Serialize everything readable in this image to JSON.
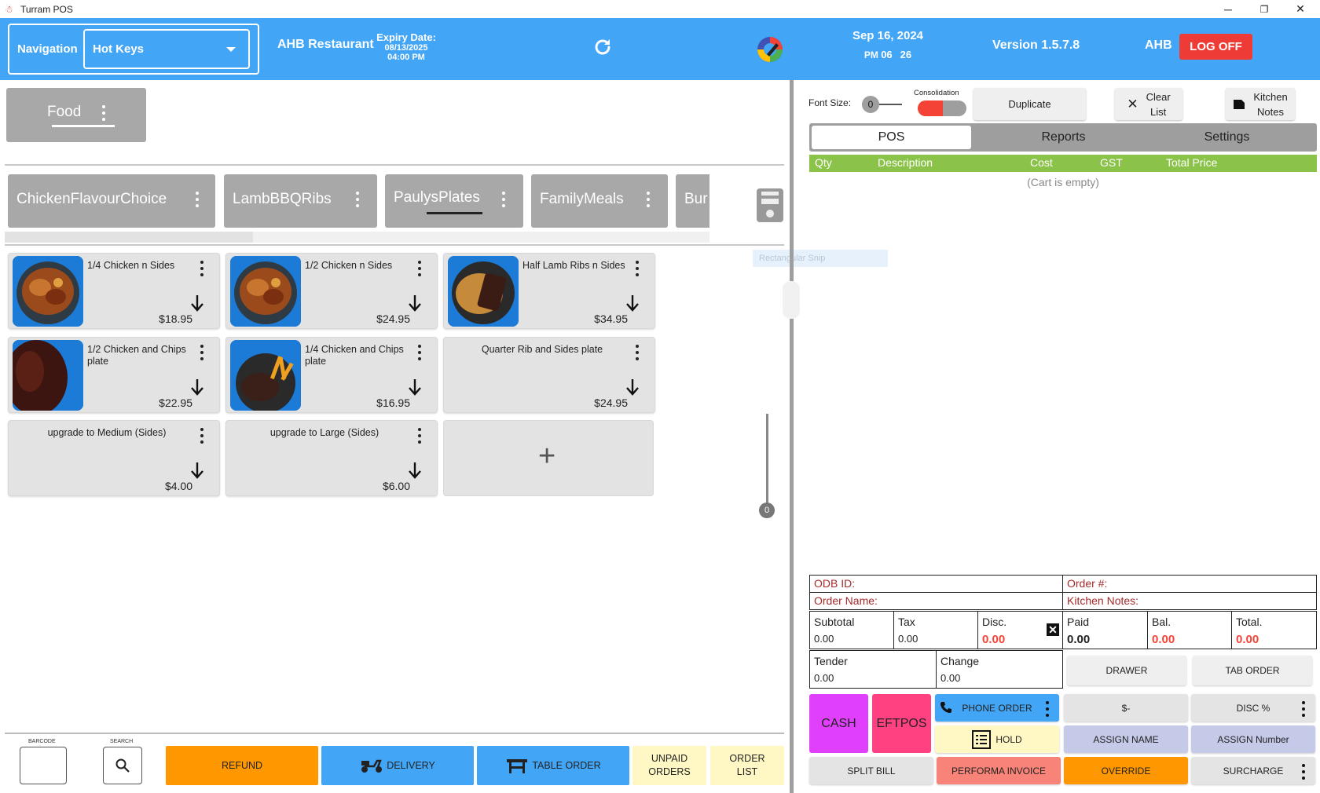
{
  "window": {
    "title": "Turram POS",
    "controls": {
      "minimize": "─",
      "restore": "❐",
      "close": "✕"
    }
  },
  "header": {
    "nav_label": "Navigation",
    "nav_selected": "Hot Keys",
    "restaurant": "AHB Restaurant",
    "expiry_label": "Expiry Date:",
    "expiry_date": "08/13/2025",
    "expiry_time": "04:00 PM",
    "date": "Sep 16, 2024",
    "time_ampm": "PM",
    "time_hour": "06",
    "time_min": "26",
    "version": "Version 1.5.7.8",
    "user": "AHB",
    "logoff": "LOG OFF",
    "colors": {
      "bar": "#42a5f5",
      "logoff": "#ef3b36"
    }
  },
  "groups": [
    {
      "label": "Food"
    }
  ],
  "categories": [
    {
      "label": "ChickenFlavourChoice"
    },
    {
      "label": "LambBBQRibs"
    },
    {
      "label": "PaulysPlates",
      "selected": true
    },
    {
      "label": "FamilyMeals"
    },
    {
      "label": "Bur"
    }
  ],
  "items": [
    {
      "name": "1/4 Chicken n Sides",
      "price": "$18.95",
      "image": "roast-chicken"
    },
    {
      "name": "1/2 Chicken n Sides",
      "price": "$24.95",
      "image": "roast-chicken"
    },
    {
      "name": "Half Lamb Ribs n Sides",
      "price": "$34.95",
      "image": "lamb-ribs"
    },
    {
      "name": "1/2 Chicken and Chips plate",
      "price": "$22.95",
      "image": "glazed-meat"
    },
    {
      "name": "1/4 Chicken and Chips plate",
      "price": "$16.95",
      "image": "chicken-chips"
    },
    {
      "name": "Quarter Rib and Sides plate",
      "price": "$24.95",
      "image": null
    },
    {
      "name": "upgrade to Medium (Sides)",
      "price": "$4.00",
      "image": null
    },
    {
      "name": "upgrade to Large (Sides)",
      "price": "$6.00",
      "image": null
    }
  ],
  "add_tile": "+",
  "snip_overlay": "Rectangular Snip",
  "slider_value": "0",
  "bottom_bar": {
    "barcode_label": "BARCODE",
    "search_label": "SEARCH",
    "refund": "REFUND",
    "delivery": "DELIVERY",
    "table_order": "TABLE ORDER",
    "unpaid_orders_1": "UNPAID",
    "unpaid_orders_2": "ORDERS",
    "order_list_1": "ORDER",
    "order_list_2": "LIST"
  },
  "right": {
    "font_size_label": "Font Size:",
    "font_size_value": "0",
    "consolidation_label": "Consolidation",
    "duplicate": "Duplicate",
    "clear_list_1": "Clear",
    "clear_list_2": "List",
    "kitchen_notes_1": "Kitchen",
    "kitchen_notes_2": "Notes",
    "tabs": [
      "POS",
      "Reports",
      "Settings"
    ],
    "cart_columns": [
      "Qty",
      "Description",
      "Cost",
      "GST",
      "Total Price"
    ],
    "cart_empty": "(Cart is empty)"
  },
  "order": {
    "odb_id": "ODB ID:",
    "order_no": "Order #:",
    "order_name": "Order Name:",
    "kitchen_notes": "Kitchen Notes:",
    "subtotal_label": "Subtotal",
    "subtotal": "0.00",
    "tax_label": "Tax",
    "tax": "0.00",
    "disc_label": "Disc.",
    "disc": "0.00",
    "paid_label": "Paid",
    "paid": "0.00",
    "bal_label": "Bal.",
    "bal": "0.00",
    "total_label": "Total.",
    "total": "0.00",
    "tender_label": "Tender",
    "tender": "0.00",
    "change_label": "Change",
    "change": "0.00"
  },
  "actions": {
    "drawer": "DRAWER",
    "tab_order": "TAB ORDER",
    "cash": "CASH",
    "eftpos": "EFTPOS",
    "phone_order": "PHONE ORDER",
    "dollar_minus": "$-",
    "disc_pct": "DISC %",
    "hold": "HOLD",
    "assign_name": "ASSIGN NAME",
    "assign_number": "ASSIGN Number",
    "split_bill": "SPLIT BILL",
    "performa_invoice": "PERFORMA INVOICE",
    "override": "OVERRIDE",
    "surcharge": "SURCHARGE"
  }
}
